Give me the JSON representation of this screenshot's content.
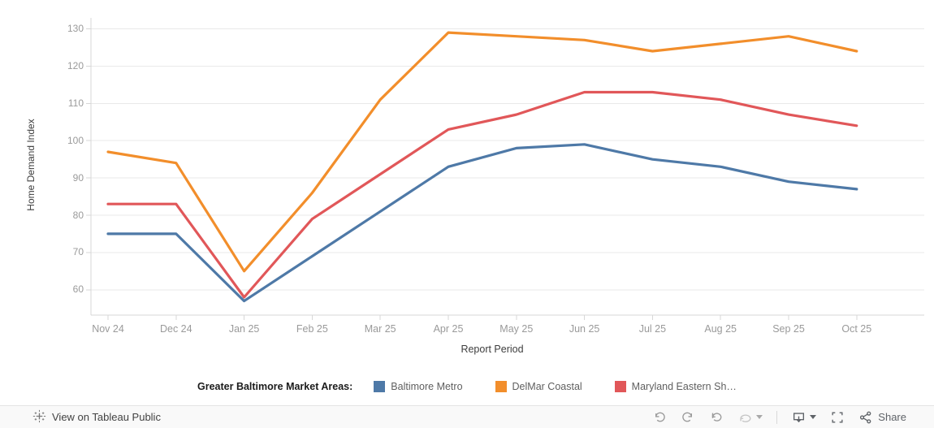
{
  "chart_data": {
    "type": "line",
    "title": "",
    "xlabel": "Report Period",
    "ylabel": "Home Demand Index",
    "categories": [
      "Nov 24",
      "Dec 24",
      "Jan 25",
      "Feb 25",
      "Mar 25",
      "Apr 25",
      "May 25",
      "Jun 25",
      "Jul 25",
      "Aug 25",
      "Sep 25",
      "Oct 25"
    ],
    "y_ticks": [
      60,
      70,
      80,
      90,
      100,
      110,
      120,
      130
    ],
    "ylim": [
      52,
      133
    ],
    "grid": true,
    "legend_position": "bottom",
    "series": [
      {
        "name": "Baltimore Metro",
        "color": "#4e79a7",
        "values": [
          75,
          75,
          57,
          69,
          81,
          93,
          98,
          99,
          95,
          93,
          89,
          87
        ]
      },
      {
        "name": "DelMar Coastal",
        "color": "#f28e2b",
        "values": [
          97,
          94,
          65,
          86,
          111,
          129,
          128,
          127,
          124,
          126,
          128,
          124
        ]
      },
      {
        "name": "Maryland Eastern Sh…",
        "color": "#e15759",
        "values": [
          83,
          83,
          58,
          79,
          91,
          103,
          107,
          113,
          113,
          111,
          107,
          104
        ]
      }
    ]
  },
  "legend": {
    "title": "Greater Baltimore Market Areas:",
    "items": [
      {
        "label": "Baltimore Metro",
        "color": "#4e79a7"
      },
      {
        "label": "DelMar Coastal",
        "color": "#f28e2b"
      },
      {
        "label": "Maryland Eastern Sh…",
        "color": "#e15759"
      }
    ]
  },
  "toolbar": {
    "view_link_label": "View on Tableau Public",
    "share_label": "Share"
  },
  "colors": {
    "gridline": "#e9e9e9",
    "axis_line": "#d7d7d7",
    "axis_text": "#9a9a9a",
    "axis_title_text": "#3d3d3d"
  }
}
